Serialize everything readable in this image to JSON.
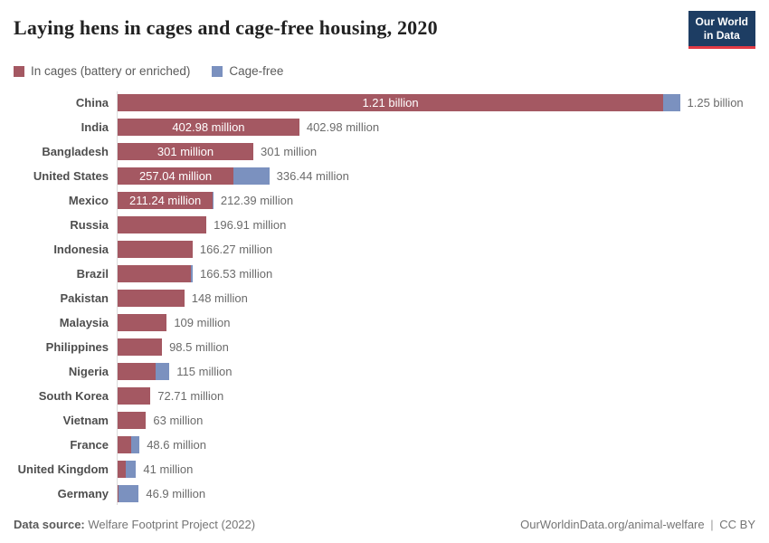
{
  "header": {
    "title": "Laying hens in cages and cage-free housing, 2020",
    "logo_line1": "Our World",
    "logo_line2": "in Data",
    "logo_bg_color": "#1d3d63",
    "logo_accent_color": "#e23a45"
  },
  "legend": {
    "items": [
      {
        "id": "caged",
        "label": "In cages (battery or enriched)"
      },
      {
        "id": "cagefree",
        "label": "Cage-free"
      }
    ]
  },
  "chart_data": {
    "type": "bar",
    "orientation": "horizontal",
    "unit": "laying hens (millions)",
    "x_max_millions": 1250,
    "grid": false,
    "legend_position": "top-left",
    "colors": {
      "caged": "#a45862",
      "cagefree": "#7b91bf"
    },
    "series_names": [
      "In cages (battery or enriched)",
      "Cage-free"
    ],
    "rows": [
      {
        "country": "China",
        "caged": 1210,
        "cagefree": 37,
        "caged_label": "1.21 billion",
        "total_label": "1.25 billion"
      },
      {
        "country": "India",
        "caged": 402.98,
        "cagefree": 0,
        "caged_label": "402.98 million",
        "total_label": "402.98 million"
      },
      {
        "country": "Bangladesh",
        "caged": 301,
        "cagefree": 0,
        "caged_label": "301 million",
        "total_label": "301 million"
      },
      {
        "country": "United States",
        "caged": 257.04,
        "cagefree": 79.4,
        "caged_label": "257.04 million",
        "total_label": "336.44 million"
      },
      {
        "country": "Mexico",
        "caged": 211.24,
        "cagefree": 1.15,
        "caged_label": "211.24 million",
        "total_label": "212.39 million"
      },
      {
        "country": "Russia",
        "caged": 196.91,
        "cagefree": 0,
        "caged_label": "",
        "total_label": "196.91 million"
      },
      {
        "country": "Indonesia",
        "caged": 166.27,
        "cagefree": 0,
        "caged_label": "",
        "total_label": "166.27 million"
      },
      {
        "country": "Brazil",
        "caged": 163.5,
        "cagefree": 3.03,
        "caged_label": "",
        "total_label": "166.53 million"
      },
      {
        "country": "Pakistan",
        "caged": 148,
        "cagefree": 0,
        "caged_label": "",
        "total_label": "148 million"
      },
      {
        "country": "Malaysia",
        "caged": 109,
        "cagefree": 0,
        "caged_label": "",
        "total_label": "109 million"
      },
      {
        "country": "Philippines",
        "caged": 98.5,
        "cagefree": 0,
        "caged_label": "",
        "total_label": "98.5 million"
      },
      {
        "country": "Nigeria",
        "caged": 84,
        "cagefree": 31,
        "caged_label": "",
        "total_label": "115 million"
      },
      {
        "country": "South Korea",
        "caged": 72.71,
        "cagefree": 0,
        "caged_label": "",
        "total_label": "72.71 million"
      },
      {
        "country": "Vietnam",
        "caged": 63,
        "cagefree": 0,
        "caged_label": "",
        "total_label": "63 million"
      },
      {
        "country": "France",
        "caged": 30,
        "cagefree": 18.6,
        "caged_label": "",
        "total_label": "48.6 million"
      },
      {
        "country": "United Kingdom",
        "caged": 19,
        "cagefree": 22,
        "caged_label": "",
        "total_label": "41 million"
      },
      {
        "country": "Germany",
        "caged": 2.9,
        "cagefree": 44,
        "caged_label": "",
        "total_label": "46.9 million"
      }
    ]
  },
  "footer": {
    "source_label": "Data source:",
    "source_value": " Welfare Footprint Project (2022)",
    "url": "OurWorldinData.org/animal-welfare",
    "separator": "|",
    "license": "CC BY"
  }
}
